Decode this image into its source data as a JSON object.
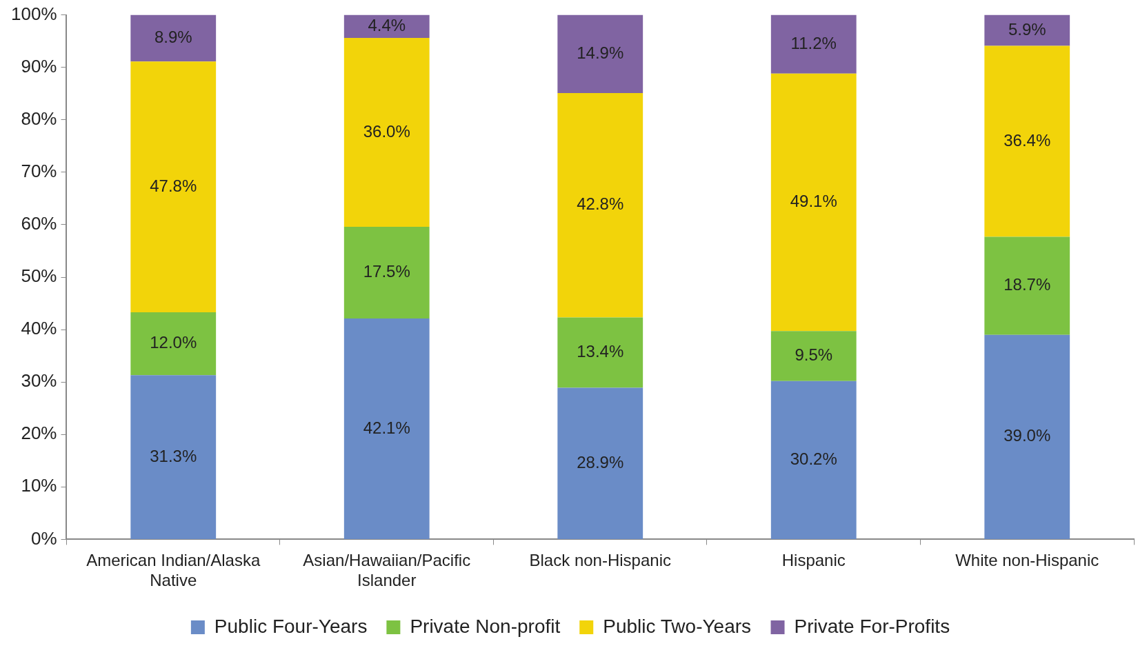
{
  "chart_data": {
    "type": "bar",
    "stacked": true,
    "categories": [
      "American Indian/Alaska Native",
      "Asian/Hawaiian/Pacific Islander",
      "Black non-Hispanic",
      "Hispanic",
      "White non-Hispanic"
    ],
    "series": [
      {
        "name": "Public Four-Years",
        "color": "#6a8cc7",
        "values": [
          31.3,
          42.1,
          28.9,
          30.2,
          39.0
        ],
        "value_labels": [
          "31.3%",
          "42.1%",
          "28.9%",
          "30.2%",
          "39.0%"
        ]
      },
      {
        "name": "Private Non-profit",
        "color": "#7dc242",
        "values": [
          12.0,
          17.5,
          13.4,
          9.5,
          18.7
        ],
        "value_labels": [
          "12.0%",
          "17.5%",
          "13.4%",
          "9.5%",
          "18.7%"
        ]
      },
      {
        "name": "Public Two-Years",
        "color": "#f2d40a",
        "values": [
          47.8,
          36.0,
          42.8,
          49.1,
          36.4
        ],
        "value_labels": [
          "47.8%",
          "36.0%",
          "42.8%",
          "49.1%",
          "36.4%"
        ]
      },
      {
        "name": "Private For-Profits",
        "color": "#8064a2",
        "values": [
          8.9,
          4.4,
          14.9,
          11.2,
          5.9
        ],
        "value_labels": [
          "8.9%",
          "4.4%",
          "14.9%",
          "11.2%",
          "5.9%"
        ]
      }
    ],
    "ylim": [
      0,
      100
    ],
    "yticks": [
      {
        "value": 0,
        "label": "0%"
      },
      {
        "value": 10,
        "label": "10%"
      },
      {
        "value": 20,
        "label": "20%"
      },
      {
        "value": 30,
        "label": "30%"
      },
      {
        "value": 40,
        "label": "40%"
      },
      {
        "value": 50,
        "label": "50%"
      },
      {
        "value": 60,
        "label": "60%"
      },
      {
        "value": 70,
        "label": "70%"
      },
      {
        "value": 80,
        "label": "80%"
      },
      {
        "value": 90,
        "label": "90%"
      },
      {
        "value": 100,
        "label": "100%"
      }
    ],
    "grid": false,
    "legend": "bottom"
  }
}
